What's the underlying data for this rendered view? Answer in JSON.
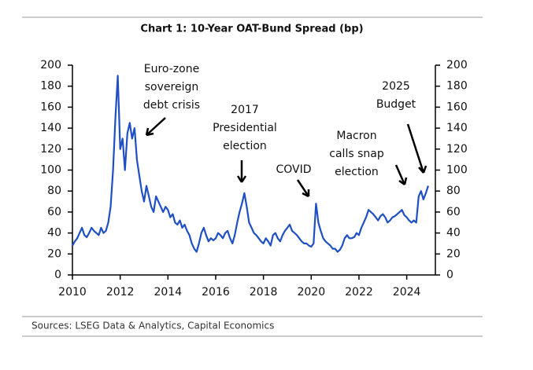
{
  "chart_data": {
    "type": "line",
    "title": "Chart 1: 10-Year OAT-Bund Spread (bp)",
    "source": "Sources: LSEG Data & Analytics, Capital Economics",
    "x": [
      2010.0,
      2010.1,
      2010.2,
      2010.3,
      2010.4,
      2010.5,
      2010.6,
      2010.7,
      2010.8,
      2010.9,
      2011.0,
      2011.1,
      2011.2,
      2011.3,
      2011.4,
      2011.5,
      2011.6,
      2011.7,
      2011.8,
      2011.9,
      2012.0,
      2012.1,
      2012.2,
      2012.3,
      2012.4,
      2012.5,
      2012.6,
      2012.7,
      2012.8,
      2012.9,
      2013.0,
      2013.1,
      2013.2,
      2013.3,
      2013.4,
      2013.5,
      2013.6,
      2013.7,
      2013.8,
      2013.9,
      2014.0,
      2014.1,
      2014.2,
      2014.3,
      2014.4,
      2014.5,
      2014.6,
      2014.7,
      2014.8,
      2014.9,
      2015.0,
      2015.1,
      2015.2,
      2015.3,
      2015.4,
      2015.5,
      2015.6,
      2015.7,
      2015.8,
      2015.9,
      2016.0,
      2016.1,
      2016.2,
      2016.3,
      2016.4,
      2016.5,
      2016.6,
      2016.7,
      2016.8,
      2016.9,
      2017.0,
      2017.1,
      2017.2,
      2017.3,
      2017.4,
      2017.5,
      2017.6,
      2017.7,
      2017.8,
      2017.9,
      2018.0,
      2018.1,
      2018.2,
      2018.3,
      2018.4,
      2018.5,
      2018.6,
      2018.7,
      2018.8,
      2018.9,
      2019.0,
      2019.1,
      2019.2,
      2019.3,
      2019.4,
      2019.5,
      2019.6,
      2019.7,
      2019.8,
      2019.9,
      2020.0,
      2020.1,
      2020.2,
      2020.3,
      2020.4,
      2020.5,
      2020.6,
      2020.7,
      2020.8,
      2020.9,
      2021.0,
      2021.1,
      2021.2,
      2021.3,
      2021.4,
      2021.5,
      2021.6,
      2021.7,
      2021.8,
      2021.9,
      2022.0,
      2022.1,
      2022.2,
      2022.3,
      2022.4,
      2022.5,
      2022.6,
      2022.7,
      2022.8,
      2022.9,
      2023.0,
      2023.1,
      2023.2,
      2023.3,
      2023.4,
      2023.5,
      2023.6,
      2023.7,
      2023.8,
      2023.9,
      2024.0,
      2024.1,
      2024.2,
      2024.3,
      2024.4,
      2024.5,
      2024.6,
      2024.7,
      2024.8,
      2024.9
    ],
    "series": [
      {
        "color": "#1f4fc4",
        "values": [
          28,
          32,
          35,
          40,
          45,
          38,
          36,
          40,
          45,
          42,
          40,
          38,
          45,
          40,
          42,
          50,
          65,
          100,
          150,
          190,
          120,
          130,
          100,
          135,
          145,
          130,
          140,
          110,
          95,
          80,
          70,
          85,
          75,
          65,
          60,
          75,
          70,
          65,
          60,
          65,
          62,
          55,
          58,
          50,
          48,
          52,
          45,
          48,
          42,
          38,
          30,
          25,
          22,
          30,
          40,
          45,
          38,
          32,
          35,
          33,
          35,
          40,
          38,
          35,
          40,
          42,
          35,
          30,
          38,
          50,
          60,
          68,
          78,
          65,
          50,
          45,
          40,
          38,
          35,
          32,
          30,
          35,
          32,
          28,
          38,
          40,
          35,
          32,
          38,
          42,
          45,
          48,
          42,
          40,
          38,
          35,
          32,
          30,
          30,
          28,
          27,
          30,
          68,
          50,
          42,
          35,
          32,
          30,
          28,
          25,
          25,
          22,
          24,
          28,
          35,
          38,
          35,
          35,
          36,
          40,
          38,
          45,
          50,
          55,
          62,
          60,
          58,
          55,
          52,
          56,
          58,
          55,
          50,
          52,
          55,
          56,
          58,
          60,
          62,
          57,
          55,
          52,
          50,
          52,
          50,
          75,
          80,
          72,
          78,
          85
        ]
      }
    ],
    "xlim": [
      2010,
      2025.2
    ],
    "xticks": [
      2010,
      2012,
      2014,
      2016,
      2018,
      2020,
      2022,
      2024
    ],
    "ylim": [
      0,
      200
    ],
    "yticks": [
      0,
      20,
      40,
      60,
      80,
      100,
      120,
      140,
      160,
      180,
      200
    ],
    "y2lim": [
      0,
      200
    ],
    "y2ticks": [
      0,
      20,
      40,
      60,
      80,
      100,
      120,
      140,
      160,
      180,
      200
    ],
    "annotations": [
      {
        "lines": [
          "Euro-zone",
          "sovereign",
          "debt crisis"
        ]
      },
      {
        "lines": [
          "2017",
          "Presidential",
          "election"
        ]
      },
      {
        "lines": [
          "COVID"
        ]
      },
      {
        "lines": [
          "Macron",
          "calls snap",
          "election"
        ]
      },
      {
        "lines": [
          "2025",
          "Budget"
        ]
      }
    ]
  }
}
